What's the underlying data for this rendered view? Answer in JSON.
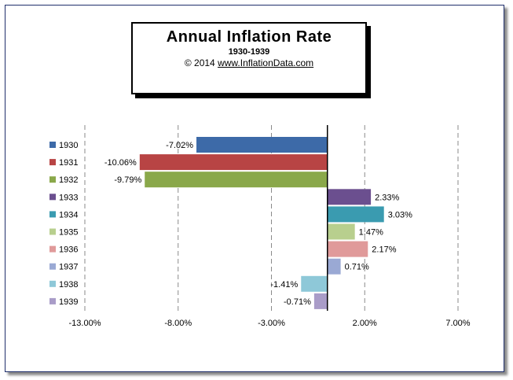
{
  "chart_data": {
    "type": "bar",
    "orientation": "horizontal",
    "title": "Annual  Inflation Rate",
    "subtitle": "1930-1939",
    "credit": {
      "copyright": "© 2014",
      "url": "www.InflationData.com"
    },
    "categories": [
      "1930",
      "1931",
      "1932",
      "1933",
      "1934",
      "1935",
      "1936",
      "1937",
      "1938",
      "1939"
    ],
    "values": [
      -7.02,
      -10.06,
      -9.79,
      2.33,
      3.03,
      1.47,
      2.17,
      0.71,
      -1.41,
      -0.71
    ],
    "data_labels": [
      "-7.02%",
      "-10.06%",
      "-9.79%",
      "2.33%",
      "3.03%",
      "1.47%",
      "2.17%",
      "0.71%",
      "-1.41%",
      "-0.71%"
    ],
    "colors": [
      "#3d6aa8",
      "#b84444",
      "#8aa84a",
      "#6b4f8f",
      "#3a9bb0",
      "#b8cf8e",
      "#e09a9a",
      "#9aa9d4",
      "#8ec8d8",
      "#a99cc8"
    ],
    "xlim": [
      -13,
      7
    ],
    "xticks": [
      -13,
      -8,
      -3,
      2,
      7
    ],
    "xtick_labels": [
      "-13.00%",
      "-8.00%",
      "-3.00%",
      "2.00%",
      "7.00%"
    ],
    "grid": "vertical-dashed",
    "legend": "left"
  }
}
